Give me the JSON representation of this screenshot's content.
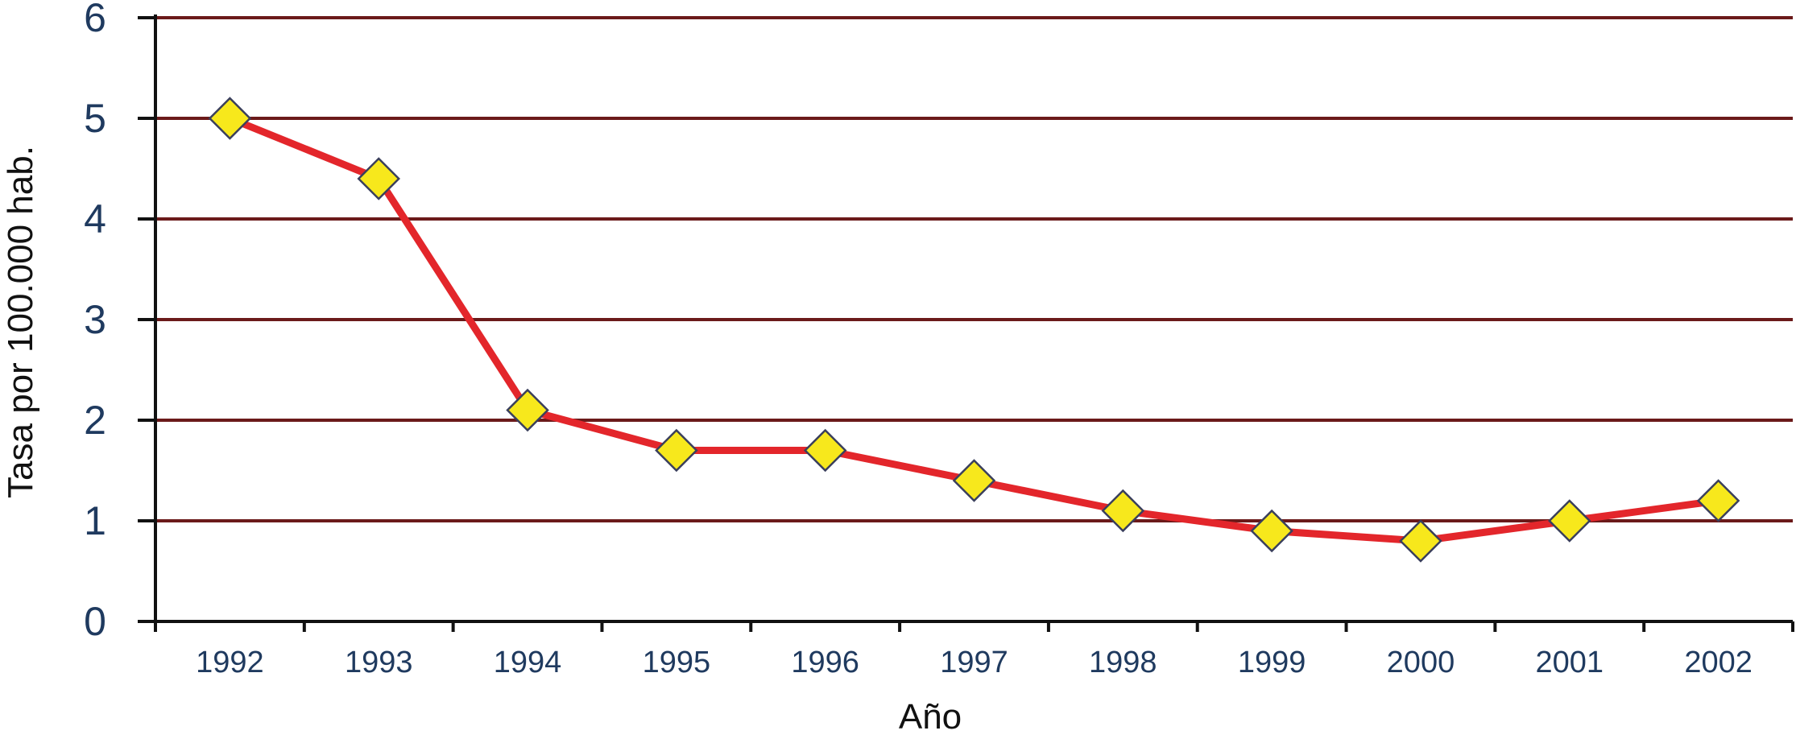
{
  "chart_data": {
    "type": "line",
    "title": "",
    "xlabel": "Año",
    "ylabel": "Tasa por 100.000 hab.",
    "categories": [
      "1992",
      "1993",
      "1994",
      "1995",
      "1996",
      "1997",
      "1998",
      "1999",
      "2000",
      "2001",
      "2002"
    ],
    "series": [
      {
        "values": [
          5.0,
          4.4,
          2.1,
          1.7,
          1.7,
          1.4,
          1.1,
          0.9,
          0.8,
          1.0,
          1.2
        ]
      }
    ],
    "ylim": [
      0,
      6
    ],
    "yticks": [
      "0",
      "1",
      "2",
      "3",
      "4",
      "5",
      "6"
    ],
    "grid": true,
    "legend": "none",
    "colors": {
      "line": "#e3262b",
      "marker_fill": "#f7e81c",
      "marker_stroke": "#3a3f5c",
      "grid": "#6b1a1a",
      "axis": "#111111",
      "tick_text": "#1f3a5f"
    }
  }
}
